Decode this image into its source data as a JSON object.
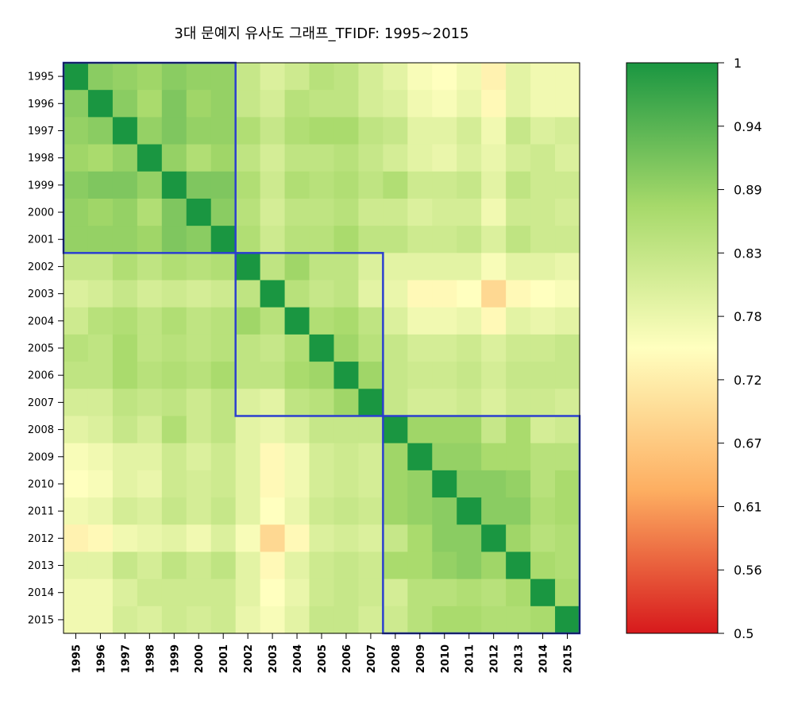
{
  "chart_data": {
    "type": "heatmap",
    "title": "3대 문예지 유사도 그래프_TFIDF: 1995~2015",
    "years": [
      "1995",
      "1996",
      "1997",
      "1998",
      "1999",
      "2000",
      "2001",
      "2002",
      "2003",
      "2004",
      "2005",
      "2006",
      "2007",
      "2008",
      "2009",
      "2010",
      "2011",
      "2012",
      "2013",
      "2014",
      "2015"
    ],
    "value_range": [
      0.5,
      1
    ],
    "colorbar_ticks": [
      "1",
      "0.94",
      "0.89",
      "0.83",
      "0.78",
      "0.72",
      "0.67",
      "0.61",
      "0.56",
      "0.5"
    ],
    "color_scale": [
      "#d7191c",
      "#fdae61",
      "#ffffbf",
      "#a6d96a",
      "#1a9641"
    ],
    "cluster_box_color": "#2b3fcf",
    "clusters": [
      {
        "start": "1995",
        "end": "2001"
      },
      {
        "start": "2002",
        "end": "2007"
      },
      {
        "start": "2008",
        "end": "2015"
      }
    ],
    "matrix": [
      [
        1.0,
        0.9,
        0.89,
        0.88,
        0.9,
        0.89,
        0.89,
        0.83,
        0.8,
        0.82,
        0.85,
        0.84,
        0.81,
        0.79,
        0.76,
        0.75,
        0.77,
        0.73,
        0.79,
        0.77,
        0.77
      ],
      [
        0.9,
        1.0,
        0.9,
        0.87,
        0.91,
        0.88,
        0.89,
        0.83,
        0.81,
        0.85,
        0.84,
        0.84,
        0.81,
        0.8,
        0.77,
        0.76,
        0.78,
        0.74,
        0.79,
        0.77,
        0.77
      ],
      [
        0.89,
        0.9,
        1.0,
        0.89,
        0.91,
        0.89,
        0.89,
        0.86,
        0.83,
        0.86,
        0.87,
        0.87,
        0.84,
        0.83,
        0.79,
        0.79,
        0.81,
        0.77,
        0.83,
        0.8,
        0.81
      ],
      [
        0.88,
        0.87,
        0.89,
        1.0,
        0.89,
        0.86,
        0.88,
        0.84,
        0.81,
        0.84,
        0.84,
        0.85,
        0.83,
        0.81,
        0.79,
        0.78,
        0.8,
        0.78,
        0.81,
        0.82,
        0.8
      ],
      [
        0.9,
        0.91,
        0.91,
        0.89,
        1.0,
        0.91,
        0.91,
        0.86,
        0.82,
        0.86,
        0.85,
        0.86,
        0.84,
        0.86,
        0.82,
        0.82,
        0.83,
        0.79,
        0.84,
        0.82,
        0.82
      ],
      [
        0.89,
        0.88,
        0.89,
        0.86,
        0.91,
        1.0,
        0.9,
        0.85,
        0.81,
        0.84,
        0.84,
        0.85,
        0.82,
        0.82,
        0.8,
        0.81,
        0.81,
        0.77,
        0.82,
        0.82,
        0.81
      ],
      [
        0.89,
        0.89,
        0.89,
        0.88,
        0.91,
        0.9,
        1.0,
        0.86,
        0.82,
        0.85,
        0.85,
        0.87,
        0.84,
        0.84,
        0.82,
        0.82,
        0.83,
        0.8,
        0.84,
        0.82,
        0.82
      ],
      [
        0.83,
        0.83,
        0.86,
        0.84,
        0.86,
        0.85,
        0.86,
        1.0,
        0.84,
        0.88,
        0.84,
        0.84,
        0.8,
        0.79,
        0.79,
        0.79,
        0.79,
        0.76,
        0.79,
        0.79,
        0.78
      ],
      [
        0.8,
        0.81,
        0.83,
        0.81,
        0.82,
        0.81,
        0.82,
        0.84,
        1.0,
        0.85,
        0.83,
        0.84,
        0.79,
        0.78,
        0.74,
        0.74,
        0.75,
        0.69,
        0.74,
        0.75,
        0.76
      ],
      [
        0.82,
        0.85,
        0.86,
        0.84,
        0.86,
        0.84,
        0.85,
        0.88,
        0.85,
        1.0,
        0.86,
        0.87,
        0.84,
        0.8,
        0.77,
        0.77,
        0.78,
        0.74,
        0.79,
        0.78,
        0.79
      ],
      [
        0.85,
        0.84,
        0.87,
        0.84,
        0.85,
        0.84,
        0.85,
        0.84,
        0.83,
        0.86,
        1.0,
        0.88,
        0.85,
        0.83,
        0.81,
        0.81,
        0.82,
        0.8,
        0.82,
        0.82,
        0.83
      ],
      [
        0.84,
        0.84,
        0.87,
        0.85,
        0.86,
        0.85,
        0.87,
        0.84,
        0.84,
        0.87,
        0.88,
        1.0,
        0.88,
        0.83,
        0.82,
        0.82,
        0.83,
        0.81,
        0.83,
        0.83,
        0.83
      ],
      [
        0.81,
        0.81,
        0.84,
        0.83,
        0.84,
        0.82,
        0.84,
        0.8,
        0.79,
        0.84,
        0.85,
        0.88,
        1.0,
        0.83,
        0.81,
        0.81,
        0.82,
        0.8,
        0.82,
        0.82,
        0.81
      ],
      [
        0.79,
        0.8,
        0.83,
        0.81,
        0.86,
        0.82,
        0.84,
        0.79,
        0.78,
        0.8,
        0.83,
        0.83,
        0.83,
        1.0,
        0.88,
        0.88,
        0.88,
        0.83,
        0.87,
        0.81,
        0.82
      ],
      [
        0.76,
        0.77,
        0.79,
        0.79,
        0.82,
        0.8,
        0.82,
        0.79,
        0.74,
        0.77,
        0.81,
        0.82,
        0.81,
        0.88,
        1.0,
        0.89,
        0.89,
        0.87,
        0.87,
        0.85,
        0.85
      ],
      [
        0.75,
        0.76,
        0.79,
        0.78,
        0.82,
        0.81,
        0.82,
        0.79,
        0.74,
        0.77,
        0.81,
        0.82,
        0.81,
        0.88,
        0.89,
        1.0,
        0.9,
        0.9,
        0.89,
        0.85,
        0.87
      ],
      [
        0.77,
        0.78,
        0.81,
        0.8,
        0.83,
        0.81,
        0.83,
        0.79,
        0.75,
        0.78,
        0.82,
        0.83,
        0.82,
        0.88,
        0.89,
        0.9,
        1.0,
        0.9,
        0.9,
        0.86,
        0.87
      ],
      [
        0.73,
        0.74,
        0.77,
        0.78,
        0.79,
        0.77,
        0.8,
        0.76,
        0.69,
        0.74,
        0.8,
        0.81,
        0.8,
        0.83,
        0.87,
        0.9,
        0.9,
        1.0,
        0.88,
        0.85,
        0.86
      ],
      [
        0.79,
        0.79,
        0.83,
        0.81,
        0.84,
        0.82,
        0.84,
        0.79,
        0.74,
        0.79,
        0.82,
        0.83,
        0.82,
        0.87,
        0.87,
        0.89,
        0.9,
        0.88,
        1.0,
        0.87,
        0.86
      ],
      [
        0.77,
        0.77,
        0.8,
        0.82,
        0.82,
        0.82,
        0.82,
        0.79,
        0.75,
        0.78,
        0.82,
        0.83,
        0.82,
        0.81,
        0.85,
        0.85,
        0.86,
        0.85,
        0.87,
        1.0,
        0.87
      ],
      [
        0.77,
        0.77,
        0.81,
        0.8,
        0.82,
        0.81,
        0.82,
        0.78,
        0.76,
        0.79,
        0.83,
        0.83,
        0.81,
        0.82,
        0.85,
        0.87,
        0.87,
        0.86,
        0.86,
        0.87,
        1.0
      ]
    ]
  }
}
